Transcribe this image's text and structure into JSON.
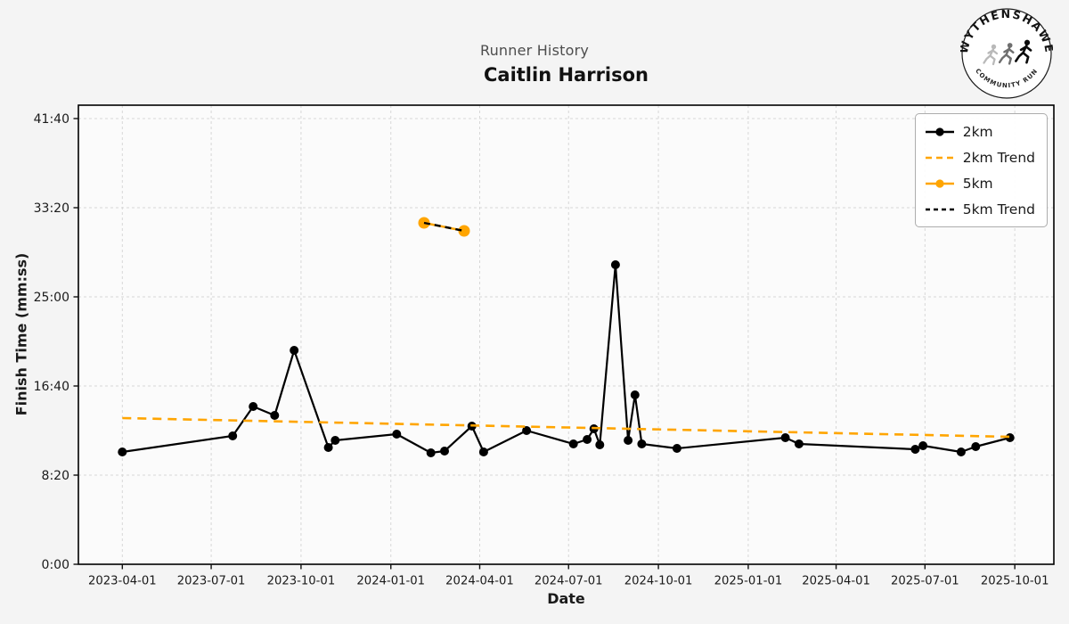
{
  "header": {
    "subtitle": "Runner History",
    "title": "Caitlin Harrison"
  },
  "logo": {
    "top_text": "WYTHENSHAWE",
    "bottom_text": "COMMUNITY RUN"
  },
  "legend": [
    {
      "label": "2km",
      "color": "#000000",
      "dash": null,
      "marker": true
    },
    {
      "label": "2km Trend",
      "color": "#FFA500",
      "dash": "7 5",
      "marker": false
    },
    {
      "label": "5km",
      "color": "#FFA500",
      "dash": null,
      "marker": true
    },
    {
      "label": "5km Trend",
      "color": "#000000",
      "dash": "5 4",
      "marker": false
    }
  ],
  "chart_data": {
    "type": "line",
    "title": "Caitlin Harrison",
    "subtitle": "Runner History",
    "xlabel": "Date",
    "ylabel": "Finish Time (mm:ss)",
    "x_ticks": [
      "2023-04-01",
      "2023-07-01",
      "2023-10-01",
      "2024-01-01",
      "2024-04-01",
      "2024-07-01",
      "2024-10-01",
      "2025-01-01",
      "2025-04-01",
      "2025-07-01",
      "2025-10-01"
    ],
    "y_ticks": [
      {
        "seconds": 0,
        "label": "0:00"
      },
      {
        "seconds": 500,
        "label": "8:20"
      },
      {
        "seconds": 1000,
        "label": "16:40"
      },
      {
        "seconds": 1500,
        "label": "25:00"
      },
      {
        "seconds": 2000,
        "label": "33:20"
      },
      {
        "seconds": 2500,
        "label": "41:40"
      }
    ],
    "x_range": [
      "2023-02-15",
      "2025-11-10"
    ],
    "y_range_seconds": [
      0,
      2575
    ],
    "grid": true,
    "legend_position": "upper right",
    "series": [
      {
        "name": "2km",
        "color": "#000000",
        "style": "solid",
        "dash": null,
        "line_width": 2.2,
        "marker": true,
        "marker_radius": 5,
        "points": [
          [
            "2023-04-01",
            "10:30"
          ],
          [
            "2023-07-23",
            "12:00"
          ],
          [
            "2023-08-13",
            "14:45"
          ],
          [
            "2023-09-04",
            "13:55"
          ],
          [
            "2023-09-24",
            "20:00"
          ],
          [
            "2023-10-29",
            "10:55"
          ],
          [
            "2023-11-05",
            "11:35"
          ],
          [
            "2024-01-07",
            "12:10"
          ],
          [
            "2024-02-11",
            "10:25"
          ],
          [
            "2024-02-25",
            "10:35"
          ],
          [
            "2024-03-24",
            "12:55"
          ],
          [
            "2024-04-05",
            "10:30"
          ],
          [
            "2024-05-19",
            "12:30"
          ],
          [
            "2024-07-06",
            "11:15"
          ],
          [
            "2024-07-20",
            "11:40"
          ],
          [
            "2024-07-27",
            "12:40"
          ],
          [
            "2024-08-02",
            "11:10"
          ],
          [
            "2024-08-18",
            "28:00"
          ],
          [
            "2024-08-31",
            "11:35"
          ],
          [
            "2024-09-07",
            "15:50"
          ],
          [
            "2024-09-14",
            "11:15"
          ],
          [
            "2024-10-20",
            "10:50"
          ],
          [
            "2025-02-08",
            "11:50"
          ],
          [
            "2025-02-22",
            "11:15"
          ],
          [
            "2025-06-21",
            "10:45"
          ],
          [
            "2025-06-29",
            "11:05"
          ],
          [
            "2025-08-07",
            "10:30"
          ],
          [
            "2025-08-22",
            "11:00"
          ],
          [
            "2025-09-26",
            "11:50"
          ]
        ]
      },
      {
        "name": "2km Trend",
        "color": "#FFA500",
        "style": "dashed",
        "dash": "10 7",
        "line_width": 2.6,
        "marker": false,
        "marker_radius": 0,
        "points": [
          [
            "2023-04-01",
            "13:40"
          ],
          [
            "2025-09-26",
            "11:55"
          ]
        ]
      },
      {
        "name": "5km",
        "color": "#FFA500",
        "style": "solid",
        "dash": null,
        "line_width": 2.5,
        "marker": true,
        "marker_radius": 6.5,
        "points": [
          [
            "2024-02-04",
            "31:55"
          ],
          [
            "2024-03-16",
            "31:10"
          ]
        ]
      },
      {
        "name": "5km Trend",
        "color": "#000000",
        "style": "dashed",
        "dash": "7 5",
        "line_width": 2.4,
        "marker": false,
        "marker_radius": 0,
        "points": [
          [
            "2024-02-04",
            "31:55"
          ],
          [
            "2024-03-16",
            "31:10"
          ]
        ]
      }
    ]
  },
  "colors": {
    "accent_orange": "#FFA500",
    "series_black": "#000000",
    "figure_bg": "#f4f4f4",
    "axes_bg": "#fbfbfb",
    "grid": "#d7d7d7",
    "spine": "#000000",
    "subtitle_gray": "#4d4d4d"
  }
}
